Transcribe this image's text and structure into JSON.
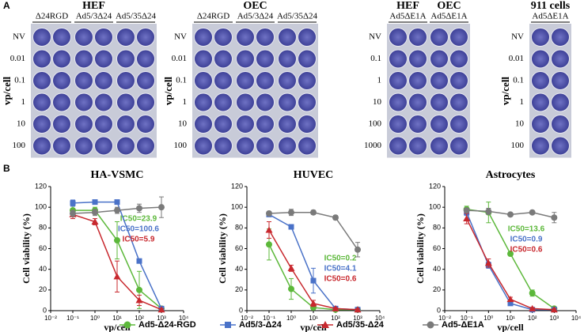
{
  "panel_a": {
    "label": "A",
    "groups": [
      {
        "titles": [
          "HEF"
        ],
        "columns": [
          "Δ24RGD",
          "Ad5/3Δ24",
          "Ad5/35Δ24"
        ],
        "rows": [
          "NV",
          "0.01",
          "0.1",
          "1",
          "10",
          "100"
        ],
        "axis_label": "vp/cell"
      },
      {
        "titles": [
          "OEC"
        ],
        "columns": [
          "Δ24RGD",
          "Ad5/3Δ24",
          "Ad5/35Δ24"
        ],
        "rows": [
          "NV",
          "0.01",
          "0.1",
          "1",
          "10",
          "100"
        ],
        "axis_label": "vp/cell"
      },
      {
        "titles": [
          "HEF",
          "OEC"
        ],
        "columns": [
          "Ad5ΔE1A",
          "Ad5ΔE1A"
        ],
        "rows": [
          "NV",
          "0.1",
          "1",
          "10",
          "100",
          "1000"
        ]
      },
      {
        "titles": [
          "911 cells"
        ],
        "columns": [
          "Ad5ΔE1A"
        ],
        "rows": [
          "NV",
          "0.01",
          "0.1",
          "1",
          "10",
          "100"
        ],
        "axis_label": "vp/cell"
      }
    ]
  },
  "panel_b_label": "B",
  "chart_data": [
    {
      "type": "line",
      "title": "HA-VSMC",
      "x_label": "vp/cell",
      "y_label": "Cell viability (%)",
      "log_x": true,
      "x": [
        0.1,
        1,
        10,
        100,
        1000
      ],
      "xlim": [
        0.01,
        10000
      ],
      "xticks": [
        {
          "value": 0.01,
          "label": "10⁻²"
        },
        {
          "value": 0.1,
          "label": "10⁻¹"
        },
        {
          "value": 1,
          "label": "10⁰"
        },
        {
          "value": 10,
          "label": "10¹"
        },
        {
          "value": 100,
          "label": "10²"
        },
        {
          "value": 1000,
          "label": "10³"
        },
        {
          "value": 10000,
          "label": "10⁴"
        }
      ],
      "ylim": [
        0,
        120
      ],
      "yticks": [
        0,
        20,
        40,
        60,
        80,
        100,
        120
      ],
      "series": [
        {
          "name": "Ad5-Δ24-RGD",
          "color": "#5cb83a",
          "marker": "circle",
          "values": [
            97,
            97,
            68,
            20,
            2
          ],
          "errors": [
            4,
            3,
            18,
            18,
            1
          ],
          "annotation": "IC50=23.9"
        },
        {
          "name": "Ad5/3-Δ24",
          "color": "#4a72c8",
          "marker": "square",
          "values": [
            104,
            105,
            105,
            48,
            2
          ],
          "errors": [
            3,
            2,
            2,
            2,
            1
          ],
          "annotation": "IC50=100.6"
        },
        {
          "name": "Ad5/35-Δ24",
          "color": "#c8282e",
          "marker": "triangle",
          "values": [
            93,
            86,
            33,
            10,
            1
          ],
          "errors": [
            4,
            3,
            15,
            5,
            1
          ],
          "annotation": "IC50=5.9"
        },
        {
          "name": "Ad5-ΔE1A",
          "color": "#7a7a7a",
          "marker": "circle",
          "values": [
            94,
            95,
            97,
            99,
            100
          ],
          "errors": [
            3,
            3,
            3,
            4,
            10
          ]
        }
      ]
    },
    {
      "type": "line",
      "title": "HUVEC",
      "x_label": "vp/cell",
      "y_label": "Cell viability (%)",
      "log_x": true,
      "x": [
        0.1,
        1,
        10,
        100,
        1000
      ],
      "xlim": [
        0.01,
        10000
      ],
      "xticks": [
        {
          "value": 0.01,
          "label": "10⁻²"
        },
        {
          "value": 0.1,
          "label": "10⁻¹"
        },
        {
          "value": 1,
          "label": "10⁰"
        },
        {
          "value": 10,
          "label": "10¹"
        },
        {
          "value": 100,
          "label": "10²"
        },
        {
          "value": 1000,
          "label": "10³"
        },
        {
          "value": 10000,
          "label": "10⁴"
        }
      ],
      "ylim": [
        0,
        120
      ],
      "yticks": [
        0,
        20,
        40,
        60,
        80,
        100,
        120
      ],
      "series": [
        {
          "name": "Ad5-Δ24-RGD",
          "color": "#5cb83a",
          "marker": "circle",
          "values": [
            64,
            21,
            3,
            1,
            1
          ],
          "errors": [
            15,
            10,
            2,
            1,
            1
          ],
          "annotation": "IC50=0.2"
        },
        {
          "name": "Ad5/3-Δ24",
          "color": "#4a72c8",
          "marker": "square",
          "values": [
            93,
            81,
            29,
            2,
            1
          ],
          "errors": [
            2,
            2,
            12,
            1,
            1
          ],
          "annotation": "IC50=4.1"
        },
        {
          "name": "Ad5/35-Δ24",
          "color": "#c8282e",
          "marker": "triangle",
          "values": [
            78,
            41,
            7,
            2,
            1
          ],
          "errors": [
            8,
            3,
            3,
            1,
            1
          ],
          "annotation": "IC50=0.6"
        },
        {
          "name": "Ad5-ΔE1A",
          "color": "#7a7a7a",
          "marker": "circle",
          "values": [
            94,
            95,
            95,
            90,
            59
          ],
          "errors": [
            2,
            3,
            2,
            2,
            7
          ]
        }
      ]
    },
    {
      "type": "line",
      "title": "Astrocytes",
      "x_label": "vp/cell",
      "y_label": "Cell viability (%)",
      "log_x": true,
      "x": [
        0.1,
        1,
        10,
        100,
        1000
      ],
      "xlim": [
        0.01,
        10000
      ],
      "xticks": [
        {
          "value": 0.01,
          "label": "10⁻²"
        },
        {
          "value": 0.1,
          "label": "10⁻¹"
        },
        {
          "value": 1,
          "label": "10⁰"
        },
        {
          "value": 10,
          "label": "10¹"
        },
        {
          "value": 100,
          "label": "10²"
        },
        {
          "value": 1000,
          "label": "10³"
        },
        {
          "value": 10000,
          "label": "10⁴"
        }
      ],
      "ylim": [
        0,
        120
      ],
      "yticks": [
        0,
        20,
        40,
        60,
        80,
        100,
        120
      ],
      "series": [
        {
          "name": "Ad5-Δ24-RGD",
          "color": "#5cb83a",
          "marker": "circle",
          "values": [
            98,
            95,
            55,
            17,
            2
          ],
          "errors": [
            3,
            10,
            2,
            3,
            1
          ],
          "annotation": "IC50=13.6"
        },
        {
          "name": "Ad5/3-Δ24",
          "color": "#4a72c8",
          "marker": "square",
          "values": [
            95,
            44,
            7,
            1,
            1
          ],
          "errors": [
            3,
            3,
            2,
            1,
            1
          ],
          "annotation": "IC50=0.9"
        },
        {
          "name": "Ad5/35-Δ24",
          "color": "#c8282e",
          "marker": "triangle",
          "values": [
            89,
            46,
            11,
            2,
            1
          ],
          "errors": [
            5,
            4,
            2,
            1,
            1
          ],
          "annotation": "IC50=0.6"
        },
        {
          "name": "Ad5-ΔE1A",
          "color": "#7a7a7a",
          "marker": "circle",
          "values": [
            97,
            96,
            93,
            95,
            90
          ],
          "errors": [
            2,
            3,
            1,
            1,
            5
          ]
        }
      ]
    }
  ]
}
